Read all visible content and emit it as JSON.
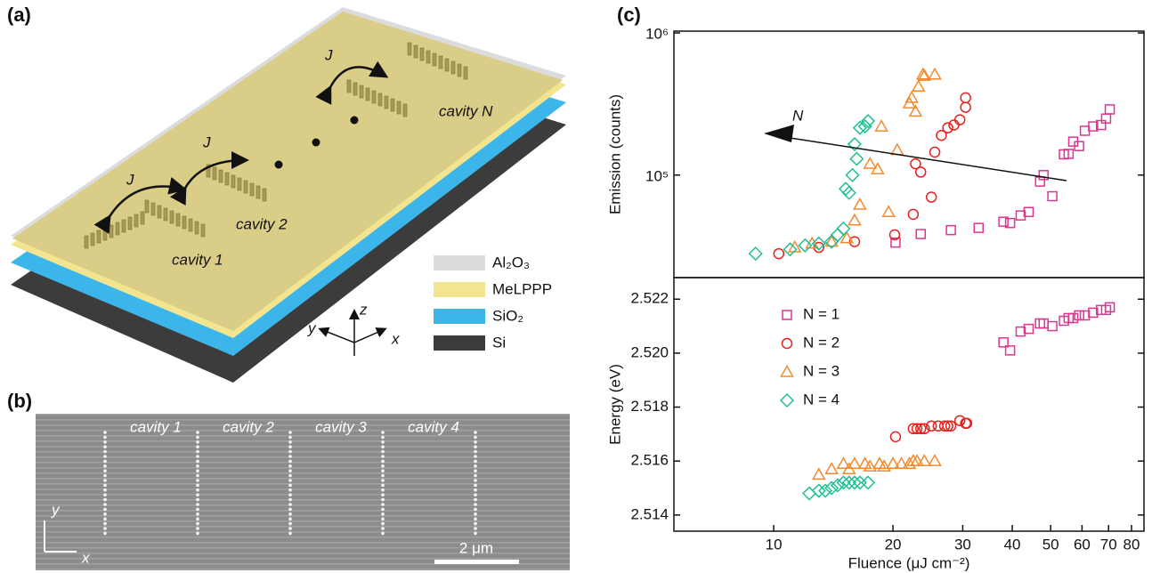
{
  "panel_a": {
    "label": "(a)",
    "couplings": [
      "J",
      "J",
      "J"
    ],
    "cavities": [
      "cavity 1",
      "cavity 2",
      "cavity N"
    ],
    "axes": [
      "x",
      "y",
      "z"
    ],
    "layers": [
      {
        "name": "Al₂O₃",
        "color": "#dcdcdc"
      },
      {
        "name": "MeLPPP",
        "color": "#f3e58f"
      },
      {
        "name": "SiO₂",
        "color": "#3cb6ea"
      },
      {
        "name": "Si",
        "color": "#3c3c3c"
      }
    ]
  },
  "panel_b": {
    "label": "(b)",
    "cavities": [
      "cavity 1",
      "cavity 2",
      "cavity 3",
      "cavity 4"
    ],
    "scale_bar": "2 μm",
    "axes": [
      "x",
      "y"
    ]
  },
  "panel_c": {
    "label": "(c)",
    "arrow_label": "N"
  },
  "chart_data": [
    {
      "type": "scatter",
      "ylabel": "Emission (counts)",
      "xlog": true,
      "ylog": true,
      "xlim": [
        5.6,
        86
      ],
      "ylim": [
        19000,
        1030000
      ],
      "yticks": [
        {
          "value": 100000,
          "label": "10⁵"
        },
        {
          "value": 1000000,
          "label": "10⁶"
        }
      ],
      "series": [
        {
          "name": "N = 1",
          "color": "#e0358f",
          "marker": "square",
          "x": [
            20.3,
            23.5,
            28,
            32.9,
            38,
            39.5,
            42,
            44,
            47,
            48,
            50.5,
            54,
            55.5,
            57,
            59,
            61,
            64,
            67,
            69,
            70.5
          ],
          "values": [
            33500,
            38500,
            41000,
            42500,
            47000,
            46000,
            52000,
            55000,
            90000,
            100000,
            71000,
            140000,
            141000,
            172000,
            160000,
            205000,
            220000,
            225000,
            250000,
            290000
          ]
        },
        {
          "name": "N = 2",
          "color": "#e8201e",
          "marker": "circle",
          "x": [
            10.3,
            13,
            16,
            20.2,
            22.5,
            22.8,
            23.5,
            25,
            25.5,
            26.5,
            27.5,
            28.5,
            29.5,
            30.5,
            30.5
          ],
          "values": [
            28000,
            31000,
            34000,
            38000,
            53000,
            120000,
            105000,
            70000,
            145000,
            190000,
            215000,
            225000,
            245000,
            350000,
            300000
          ]
        },
        {
          "name": "N = 3",
          "color": "#f28a30",
          "marker": "triangle",
          "x": [
            11.3,
            12.5,
            14,
            15.3,
            16,
            16.5,
            17.5,
            18.3,
            18.7,
            19.5,
            20.5,
            22,
            22.3,
            22.8,
            23.2,
            23.8,
            24,
            25.5
          ],
          "values": [
            31000,
            33000,
            34000,
            36000,
            48000,
            62000,
            120000,
            110000,
            220000,
            55000,
            150000,
            320000,
            350000,
            280000,
            420000,
            510000,
            500000,
            510000
          ]
        },
        {
          "name": "N = 4",
          "color": "#1fbf95",
          "marker": "diamond",
          "x": [
            9,
            11,
            12,
            13,
            14,
            14.5,
            15,
            15.2,
            15.5,
            15.8,
            16,
            16.2,
            16.5,
            17,
            17.3
          ],
          "values": [
            28000,
            30000,
            32000,
            33000,
            34000,
            38000,
            42000,
            80000,
            75000,
            100000,
            165000,
            130000,
            215000,
            220000,
            240000
          ]
        }
      ]
    },
    {
      "type": "scatter",
      "xlabel": "Fluence (μJ cm⁻²)",
      "ylabel": "Energy (eV)",
      "xlog": true,
      "xlim": [
        5.6,
        86
      ],
      "ylim": [
        2.5134,
        2.5228
      ],
      "xticks": [
        10,
        20,
        30,
        40,
        50,
        60,
        70,
        80
      ],
      "yticks": [
        2.514,
        2.516,
        2.518,
        {
          "value": 2.52,
          "label": "2.520"
        },
        2.522
      ],
      "legend": "upper left",
      "series": [
        {
          "name": "N = 1",
          "color": "#e0358f",
          "marker": "square",
          "x": [
            38,
            39.5,
            42,
            44,
            47,
            48,
            50.5,
            54,
            55.5,
            57,
            59,
            61,
            64,
            67,
            69,
            70.5
          ],
          "values": [
            2.5204,
            2.5201,
            2.5208,
            2.5209,
            2.5211,
            2.5211,
            2.521,
            2.5212,
            2.5213,
            2.5213,
            2.5214,
            2.5214,
            2.5215,
            2.5216,
            2.5216,
            2.5217
          ]
        },
        {
          "name": "N = 2",
          "color": "#e8201e",
          "marker": "circle",
          "x": [
            20.3,
            22.5,
            23,
            23.5,
            24,
            25,
            26,
            27,
            27.5,
            28,
            29.5,
            30.5,
            30.7
          ],
          "values": [
            2.5169,
            2.5172,
            2.5172,
            2.5172,
            2.5172,
            2.5173,
            2.5173,
            2.5173,
            2.5173,
            2.5173,
            2.5175,
            2.5174,
            2.5174
          ]
        },
        {
          "name": "N = 3",
          "color": "#f28a30",
          "marker": "triangle",
          "x": [
            13,
            14,
            15,
            15.5,
            16,
            17,
            17.5,
            18.5,
            19,
            20,
            21,
            22,
            22.5,
            23,
            24,
            25.5
          ],
          "values": [
            2.5155,
            2.5157,
            2.5159,
            2.5157,
            2.5159,
            2.5159,
            2.5158,
            2.5159,
            2.5158,
            2.5159,
            2.5159,
            2.5159,
            2.516,
            2.516,
            2.516,
            2.516
          ]
        },
        {
          "name": "N = 4",
          "color": "#1fbf95",
          "marker": "diamond",
          "x": [
            12.3,
            13,
            13.5,
            14,
            14.5,
            15,
            15.5,
            16,
            16.5,
            17.3
          ],
          "values": [
            2.5148,
            2.5149,
            2.5149,
            2.515,
            2.5151,
            2.5152,
            2.5152,
            2.5152,
            2.5152,
            2.5152
          ]
        }
      ]
    }
  ]
}
